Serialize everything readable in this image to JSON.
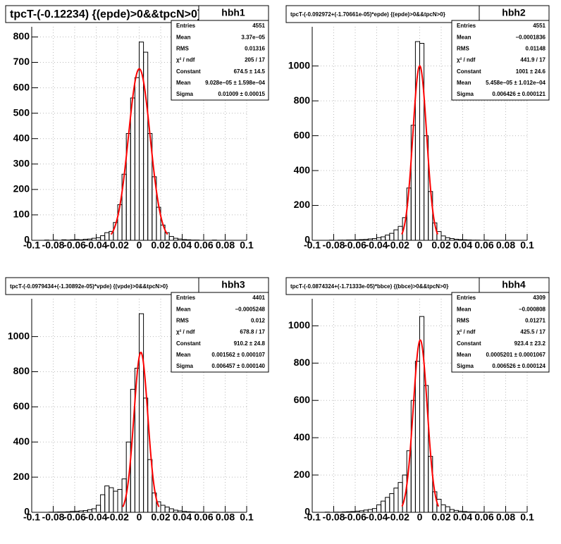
{
  "chart_data": [
    {
      "type": "histogram",
      "title": "tpcT-(-0.12234) {(epde)>0&&tpcN>0}",
      "name": "hbh1",
      "stats": [
        {
          "label": "Entries",
          "value": "4551"
        },
        {
          "label": "Mean",
          "value": "3.37e−05"
        },
        {
          "label": "RMS",
          "value": "0.01316"
        },
        {
          "label": "χ² / ndf",
          "value": "205 / 17"
        },
        {
          "label": "Constant",
          "value": "674.5 ± 14.5"
        },
        {
          "label": "Mean",
          "value": "9.028e−05 ± 1.598e−04"
        },
        {
          "label": "Sigma",
          "value": "0.01009 ± 0.00015"
        }
      ],
      "bins": [
        -0.1,
        -0.096,
        -0.092,
        -0.088,
        -0.084,
        -0.08,
        -0.076,
        -0.072,
        -0.068,
        -0.064,
        -0.06,
        -0.056,
        -0.052,
        -0.048,
        -0.044,
        -0.04,
        -0.036,
        -0.032,
        -0.028,
        -0.024,
        -0.02,
        -0.016,
        -0.012,
        -0.008,
        -0.004,
        0,
        0.004,
        0.008,
        0.012,
        0.016,
        0.02,
        0.024,
        0.028,
        0.032,
        0.036,
        0.04,
        0.044,
        0.048,
        0.052,
        0.056,
        0.06,
        0.064,
        0.068,
        0.072,
        0.076,
        0.08,
        0.084,
        0.088,
        0.092,
        0.096,
        0.1
      ],
      "counts": [
        0,
        0,
        0,
        1,
        0,
        1,
        0,
        2,
        1,
        2,
        3,
        2,
        4,
        5,
        8,
        10,
        18,
        30,
        35,
        70,
        140,
        260,
        420,
        560,
        640,
        780,
        740,
        420,
        250,
        130,
        60,
        30,
        15,
        8,
        5,
        3,
        2,
        1,
        1,
        0,
        0,
        0,
        1,
        0,
        0,
        0,
        0,
        0,
        0,
        0
      ],
      "color": "#000000",
      "fit": {
        "constant": 674.5,
        "mean": 9.028e-05,
        "sigma": 0.01009,
        "color": "#ff0000"
      },
      "xlim": [
        -0.1,
        0.1
      ],
      "xticks": [
        -0.1,
        -0.08,
        -0.06,
        -0.04,
        -0.02,
        0,
        0.02,
        0.04,
        0.06,
        0.08,
        0.1
      ],
      "ylim": [
        0,
        840
      ],
      "yticks": [
        0,
        100,
        200,
        300,
        400,
        500,
        600,
        700,
        800
      ],
      "grid": true
    },
    {
      "type": "histogram",
      "title": "tpcT-(-0.092972+(-1.70661e-05)*epde) {(epde)>0&&tpcN>0}",
      "name": "hbh2",
      "stats": [
        {
          "label": "Entries",
          "value": "4551"
        },
        {
          "label": "Mean",
          "value": "−0.0001836"
        },
        {
          "label": "RMS",
          "value": "0.01148"
        },
        {
          "label": "χ² / ndf",
          "value": "441.9 / 17"
        },
        {
          "label": "Constant",
          "value": "1001 ± 24.6"
        },
        {
          "label": "Mean",
          "value": "5.458e−05 ± 1.012e−04"
        },
        {
          "label": "Sigma",
          "value": "0.006426 ± 0.000121"
        }
      ],
      "bins": [
        -0.1,
        -0.096,
        -0.092,
        -0.088,
        -0.084,
        -0.08,
        -0.076,
        -0.072,
        -0.068,
        -0.064,
        -0.06,
        -0.056,
        -0.052,
        -0.048,
        -0.044,
        -0.04,
        -0.036,
        -0.032,
        -0.028,
        -0.024,
        -0.02,
        -0.016,
        -0.012,
        -0.008,
        -0.004,
        0,
        0.004,
        0.008,
        0.012,
        0.016,
        0.02,
        0.024,
        0.028,
        0.032,
        0.036,
        0.04,
        0.044,
        0.048,
        0.052,
        0.056,
        0.06,
        0.064,
        0.068,
        0.072,
        0.076,
        0.08,
        0.084,
        0.088,
        0.092,
        0.096,
        0.1
      ],
      "counts": [
        0,
        0,
        0,
        0,
        1,
        0,
        1,
        1,
        2,
        2,
        3,
        4,
        5,
        8,
        10,
        15,
        20,
        30,
        40,
        60,
        80,
        130,
        300,
        660,
        1140,
        1130,
        600,
        280,
        100,
        50,
        25,
        15,
        10,
        6,
        4,
        3,
        2,
        1,
        1,
        0,
        1,
        0,
        0,
        0,
        0,
        0,
        0,
        0,
        0,
        0
      ],
      "color": "#000000",
      "fit": {
        "constant": 1001,
        "mean": 5.458e-05,
        "sigma": 0.006426,
        "color": "#ff0000"
      },
      "xlim": [
        -0.1,
        0.1
      ],
      "xticks": [
        -0.1,
        -0.08,
        -0.06,
        -0.04,
        -0.02,
        0,
        0.02,
        0.04,
        0.06,
        0.08,
        0.1
      ],
      "ylim": [
        0,
        1225
      ],
      "yticks": [
        0,
        200,
        400,
        600,
        800,
        1000
      ],
      "grid": true
    },
    {
      "type": "histogram",
      "title": "tpcT-(-0.0979434+(-1.30892e-05)*vpde) {(vpde)>0&&tpcN>0}",
      "name": "hbh3",
      "stats": [
        {
          "label": "Entries",
          "value": "4401"
        },
        {
          "label": "Mean",
          "value": "−0.0005248"
        },
        {
          "label": "RMS",
          "value": "0.012"
        },
        {
          "label": "χ² / ndf",
          "value": "678.8 / 17"
        },
        {
          "label": "Constant",
          "value": "910.2 ± 24.8"
        },
        {
          "label": "Mean",
          "value": "0.001562 ± 0.000107"
        },
        {
          "label": "Sigma",
          "value": "0.006457 ± 0.000140"
        }
      ],
      "bins": [
        -0.1,
        -0.096,
        -0.092,
        -0.088,
        -0.084,
        -0.08,
        -0.076,
        -0.072,
        -0.068,
        -0.064,
        -0.06,
        -0.056,
        -0.052,
        -0.048,
        -0.044,
        -0.04,
        -0.036,
        -0.032,
        -0.028,
        -0.024,
        -0.02,
        -0.016,
        -0.012,
        -0.008,
        -0.004,
        0,
        0.004,
        0.008,
        0.012,
        0.016,
        0.02,
        0.024,
        0.028,
        0.032,
        0.036,
        0.04,
        0.044,
        0.048,
        0.052,
        0.056,
        0.06,
        0.064,
        0.068,
        0.072,
        0.076,
        0.08,
        0.084,
        0.088,
        0.092,
        0.096,
        0.1
      ],
      "counts": [
        0,
        0,
        0,
        0,
        1,
        1,
        2,
        2,
        3,
        5,
        6,
        8,
        10,
        15,
        20,
        40,
        100,
        150,
        140,
        120,
        130,
        190,
        400,
        700,
        820,
        1130,
        650,
        300,
        110,
        60,
        40,
        30,
        20,
        12,
        8,
        5,
        3,
        2,
        1,
        1,
        0,
        0,
        1,
        0,
        0,
        0,
        0,
        0,
        0,
        0
      ],
      "color": "#000000",
      "fit": {
        "constant": 910.2,
        "mean": 0.001562,
        "sigma": 0.006457,
        "color": "#ff0000"
      },
      "xlim": [
        -0.1,
        0.1
      ],
      "xticks": [
        -0.1,
        -0.08,
        -0.06,
        -0.04,
        -0.02,
        0,
        0.02,
        0.04,
        0.06,
        0.08,
        0.1
      ],
      "ylim": [
        0,
        1215
      ],
      "yticks": [
        0,
        200,
        400,
        600,
        800,
        1000
      ],
      "grid": true
    },
    {
      "type": "histogram",
      "title": "tpcT-(-0.0874324+(-1.71333e-05)*bbce) {(bbce)>0&&tpcN>0}",
      "name": "hbh4",
      "stats": [
        {
          "label": "Entries",
          "value": "4309"
        },
        {
          "label": "Mean",
          "value": "−0.000808"
        },
        {
          "label": "RMS",
          "value": "0.01271"
        },
        {
          "label": "χ² / ndf",
          "value": "425.5 / 17"
        },
        {
          "label": "Constant",
          "value": "923.4 ± 23.2"
        },
        {
          "label": "Mean",
          "value": "0.0005201 ± 0.0001067"
        },
        {
          "label": "Sigma",
          "value": "0.006526 ± 0.000124"
        }
      ],
      "bins": [
        -0.1,
        -0.096,
        -0.092,
        -0.088,
        -0.084,
        -0.08,
        -0.076,
        -0.072,
        -0.068,
        -0.064,
        -0.06,
        -0.056,
        -0.052,
        -0.048,
        -0.044,
        -0.04,
        -0.036,
        -0.032,
        -0.028,
        -0.024,
        -0.02,
        -0.016,
        -0.012,
        -0.008,
        -0.004,
        0,
        0.004,
        0.008,
        0.012,
        0.016,
        0.02,
        0.024,
        0.028,
        0.032,
        0.036,
        0.04,
        0.044,
        0.048,
        0.052,
        0.056,
        0.06,
        0.064,
        0.068,
        0.072,
        0.076,
        0.08,
        0.084,
        0.088,
        0.092,
        0.096,
        0.1
      ],
      "counts": [
        0,
        0,
        0,
        1,
        0,
        1,
        1,
        2,
        3,
        4,
        6,
        8,
        12,
        15,
        20,
        40,
        60,
        80,
        100,
        130,
        160,
        200,
        330,
        600,
        810,
        1050,
        680,
        300,
        110,
        70,
        40,
        30,
        15,
        10,
        6,
        4,
        2,
        2,
        1,
        1,
        0,
        1,
        0,
        0,
        0,
        0,
        0,
        0,
        0,
        0
      ],
      "color": "#000000",
      "fit": {
        "constant": 923.4,
        "mean": 0.0005201,
        "sigma": 0.006526,
        "color": "#ff0000"
      },
      "xlim": [
        -0.1,
        0.1
      ],
      "xticks": [
        -0.1,
        -0.08,
        -0.06,
        -0.04,
        -0.02,
        0,
        0.02,
        0.04,
        0.06,
        0.08,
        0.1
      ],
      "ylim": [
        0,
        1145
      ],
      "yticks": [
        0,
        200,
        400,
        600,
        800,
        1000
      ],
      "grid": true
    }
  ]
}
